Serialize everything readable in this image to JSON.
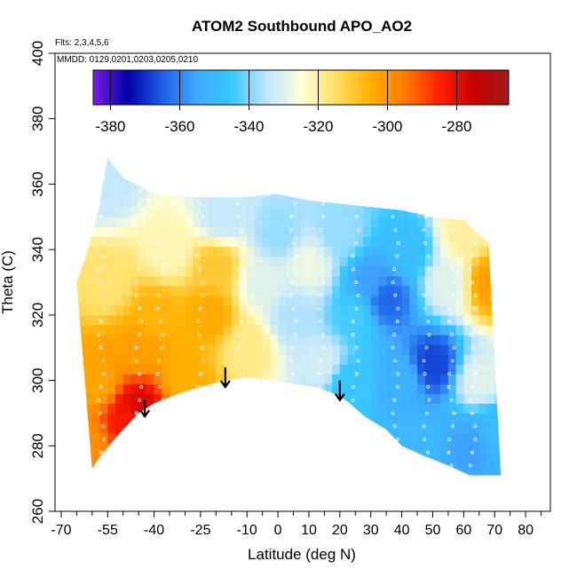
{
  "chart_data": {
    "type": "heatmap",
    "title": "ATOM2 Southbound APO_AO2",
    "subtitle_lines": [
      "Flts: 2,3,4,5,6",
      "MMDD: 0129,0201,0203,0205,0210"
    ],
    "xlabel": "Latitude (deg N)",
    "ylabel": "Theta (C)",
    "xlim": [
      -72,
      88
    ],
    "ylim": [
      260,
      400
    ],
    "x_ticks_major": [
      -70,
      -55,
      -40,
      -25,
      -10,
      0,
      10,
      20,
      30,
      40,
      50,
      60,
      70,
      80
    ],
    "x_ticks_minor": [
      -65,
      -60,
      -50,
      -45,
      -35,
      -30,
      -20,
      -15,
      -5,
      5,
      15,
      25,
      35,
      45,
      55,
      65,
      75,
      85
    ],
    "y_ticks": [
      260,
      280,
      300,
      320,
      340,
      360,
      380,
      400
    ],
    "grid": false,
    "colorbar": {
      "placement": "top-inside",
      "min": -385,
      "max": -265,
      "ticks": [
        -380,
        -360,
        -340,
        -320,
        -300,
        -280
      ],
      "colors": [
        "#7b1fe6",
        "#0000a8",
        "#1e5fe6",
        "#3fa9ff",
        "#37c8ff",
        "#bfe6ff",
        "#ffffd8",
        "#ffe066",
        "#ffb000",
        "#ff7a00",
        "#ff2000",
        "#c80000",
        "#9e1c1c"
      ]
    },
    "section_outline": {
      "top": [
        [
          -55,
          368
        ],
        [
          -50,
          362
        ],
        [
          -40,
          357
        ],
        [
          -25,
          356
        ],
        [
          -12,
          356
        ],
        [
          0,
          357
        ],
        [
          10,
          355
        ],
        [
          20,
          354
        ],
        [
          30,
          353
        ],
        [
          40,
          352
        ],
        [
          50,
          350
        ],
        [
          60,
          349
        ],
        [
          68,
          342
        ]
      ],
      "bottom": [
        [
          -60,
          273
        ],
        [
          -58,
          276
        ],
        [
          -52,
          283
        ],
        [
          -45,
          290
        ],
        [
          -40,
          293
        ],
        [
          -32,
          296
        ],
        [
          -25,
          298
        ],
        [
          -17,
          300
        ],
        [
          -10,
          301
        ],
        [
          -2,
          300
        ],
        [
          5,
          299
        ],
        [
          12,
          298
        ],
        [
          18,
          296
        ],
        [
          22,
          294
        ],
        [
          28,
          289
        ],
        [
          35,
          285
        ],
        [
          40,
          280
        ],
        [
          47,
          277
        ],
        [
          55,
          274
        ],
        [
          62,
          271
        ],
        [
          72,
          271
        ]
      ],
      "left_top": [
        [
          -65,
          330
        ],
        [
          -62,
          338
        ],
        [
          -58,
          352
        ],
        [
          -55,
          368
        ]
      ]
    },
    "field_anchors": [
      {
        "lat": -62,
        "theta": 280,
        "value": -299
      },
      {
        "lat": -58,
        "theta": 300,
        "value": -303
      },
      {
        "lat": -55,
        "theta": 330,
        "value": -316
      },
      {
        "lat": -55,
        "theta": 360,
        "value": -334
      },
      {
        "lat": -48,
        "theta": 288,
        "value": -283
      },
      {
        "lat": -45,
        "theta": 292,
        "value": -278
      },
      {
        "lat": -45,
        "theta": 310,
        "value": -302
      },
      {
        "lat": -40,
        "theta": 320,
        "value": -306
      },
      {
        "lat": -35,
        "theta": 340,
        "value": -322
      },
      {
        "lat": -30,
        "theta": 300,
        "value": -305
      },
      {
        "lat": -22,
        "theta": 320,
        "value": -304
      },
      {
        "lat": -20,
        "theta": 335,
        "value": -310
      },
      {
        "lat": -18,
        "theta": 350,
        "value": -334
      },
      {
        "lat": -10,
        "theta": 310,
        "value": -318
      },
      {
        "lat": -5,
        "theta": 330,
        "value": -330
      },
      {
        "lat": 0,
        "theta": 345,
        "value": -338
      },
      {
        "lat": 5,
        "theta": 320,
        "value": -336
      },
      {
        "lat": 10,
        "theta": 335,
        "value": -328
      },
      {
        "lat": 15,
        "theta": 305,
        "value": -332
      },
      {
        "lat": 20,
        "theta": 345,
        "value": -338
      },
      {
        "lat": 22,
        "theta": 300,
        "value": -346
      },
      {
        "lat": 25,
        "theta": 320,
        "value": -344
      },
      {
        "lat": 30,
        "theta": 330,
        "value": -356
      },
      {
        "lat": 35,
        "theta": 325,
        "value": -364
      },
      {
        "lat": 40,
        "theta": 300,
        "value": -352
      },
      {
        "lat": 42,
        "theta": 340,
        "value": -348
      },
      {
        "lat": 45,
        "theta": 280,
        "value": -350
      },
      {
        "lat": 50,
        "theta": 305,
        "value": -368
      },
      {
        "lat": 55,
        "theta": 330,
        "value": -330
      },
      {
        "lat": 60,
        "theta": 345,
        "value": -320
      },
      {
        "lat": 62,
        "theta": 280,
        "value": -356
      },
      {
        "lat": 65,
        "theta": 300,
        "value": -330
      },
      {
        "lat": 68,
        "theta": 330,
        "value": -302
      },
      {
        "lat": 70,
        "theta": 285,
        "value": -350
      }
    ],
    "arrows": [
      {
        "lat": -43,
        "theta_top": 294,
        "theta_tip": 289
      },
      {
        "lat": -17,
        "theta_top": 304,
        "theta_tip": 298
      },
      {
        "lat": 20,
        "theta_top": 300,
        "theta_tip": 294
      }
    ],
    "flight_tracks": [
      -57,
      -45,
      -38,
      -25,
      -12,
      5,
      14,
      25,
      38,
      48,
      56,
      63
    ]
  }
}
